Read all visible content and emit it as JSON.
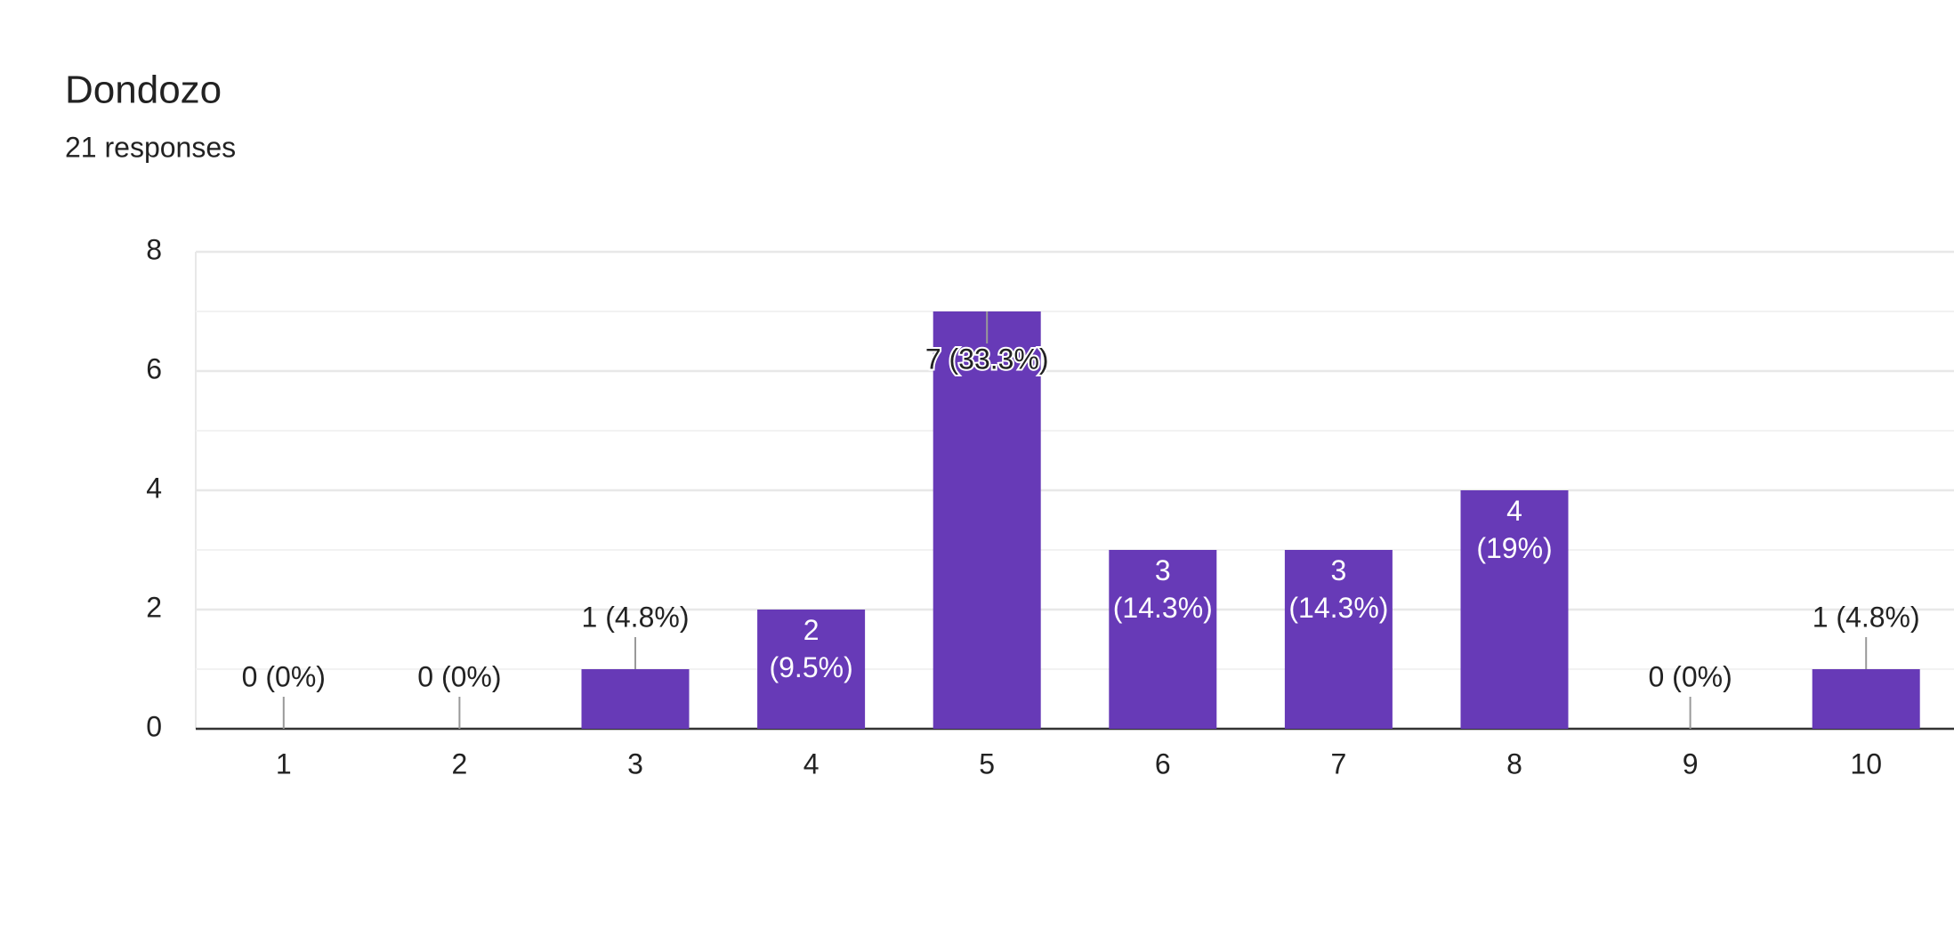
{
  "chart_data": {
    "type": "bar",
    "title": "Dondozo",
    "subtitle": "21 responses",
    "categories": [
      "1",
      "2",
      "3",
      "4",
      "5",
      "6",
      "7",
      "8",
      "9",
      "10"
    ],
    "values": [
      0,
      0,
      1,
      2,
      7,
      3,
      3,
      4,
      0,
      1
    ],
    "value_labels": [
      "0 (0%)",
      "0 (0%)",
      "1 (4.8%)",
      "2 (9.5%)",
      "7 (33.3%)",
      "3 (14.3%)",
      "3 (14.3%)",
      "4 (19%)",
      "0 (0%)",
      "1 (4.8%)"
    ],
    "color": "#673ab7",
    "ylim": [
      0,
      8
    ],
    "yticks": [
      0,
      2,
      4,
      6,
      8
    ],
    "grid": true
  }
}
